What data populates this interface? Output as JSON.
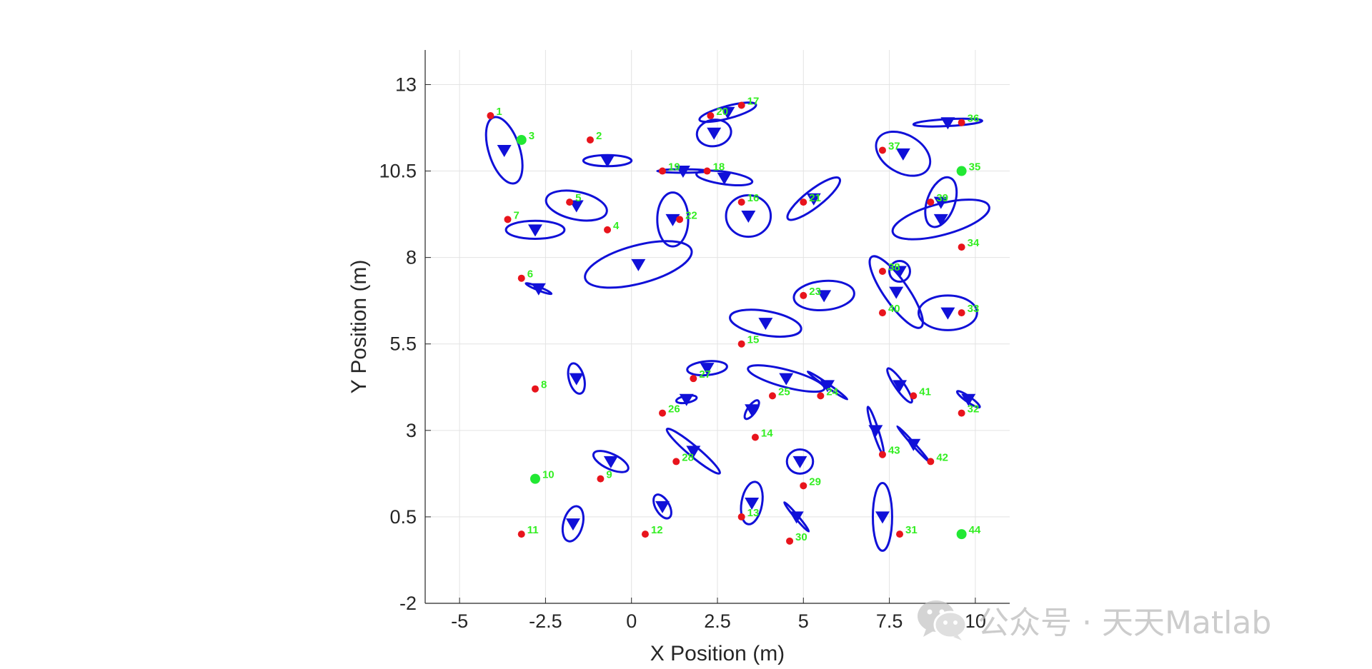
{
  "chart_data": {
    "type": "scatter",
    "xlabel": "X Position (m)",
    "ylabel": "Y Position (m)",
    "xlim": [
      -6,
      11
    ],
    "ylim": [
      -2,
      14
    ],
    "xticks": [
      -5,
      -2.5,
      0,
      2.5,
      5,
      7.5,
      10
    ],
    "xtick_labels": [
      "-5",
      "-2.5",
      "0",
      "2.5",
      "5",
      "7.5",
      "10"
    ],
    "yticks": [
      -2,
      0.5,
      3,
      5.5,
      8,
      10.5,
      13
    ],
    "ytick_labels": [
      "-2",
      "0.5",
      "3",
      "5.5",
      "8",
      "10.5",
      "13"
    ],
    "grid": true,
    "colors": {
      "node": "#e8141c",
      "anchor": "#22e833",
      "estimate": "#1010d8",
      "label": "#33ee22",
      "grid": "#e3e3e3",
      "axis": "#262626"
    },
    "nodes": [
      {
        "id": "1",
        "x": -4.1,
        "y": 12.1,
        "type": "node"
      },
      {
        "id": "2",
        "x": -1.2,
        "y": 11.4,
        "type": "node"
      },
      {
        "id": "3",
        "x": -3.2,
        "y": 11.4,
        "type": "anchor"
      },
      {
        "id": "4",
        "x": -0.7,
        "y": 8.8,
        "type": "node"
      },
      {
        "id": "5",
        "x": -1.8,
        "y": 9.6,
        "type": "node"
      },
      {
        "id": "6",
        "x": -3.2,
        "y": 7.4,
        "type": "node"
      },
      {
        "id": "7",
        "x": -3.6,
        "y": 9.1,
        "type": "node"
      },
      {
        "id": "8",
        "x": -2.8,
        "y": 4.2,
        "type": "node"
      },
      {
        "id": "9",
        "x": -0.9,
        "y": 1.6,
        "type": "node"
      },
      {
        "id": "10",
        "x": -2.8,
        "y": 1.6,
        "type": "anchor"
      },
      {
        "id": "11",
        "x": -3.2,
        "y": 0.0,
        "type": "node"
      },
      {
        "id": "12",
        "x": 0.4,
        "y": 0.0,
        "type": "node"
      },
      {
        "id": "13",
        "x": 3.2,
        "y": 0.5,
        "type": "node"
      },
      {
        "id": "14",
        "x": 3.6,
        "y": 2.8,
        "type": "node"
      },
      {
        "id": "15",
        "x": 3.2,
        "y": 5.5,
        "type": "node"
      },
      {
        "id": "16",
        "x": 3.2,
        "y": 9.6,
        "type": "node"
      },
      {
        "id": "17",
        "x": 3.2,
        "y": 12.4,
        "type": "node"
      },
      {
        "id": "18",
        "x": 2.2,
        "y": 10.5,
        "type": "node"
      },
      {
        "id": "19",
        "x": 0.9,
        "y": 10.5,
        "type": "node"
      },
      {
        "id": "20",
        "x": 2.3,
        "y": 12.1,
        "type": "node"
      },
      {
        "id": "21",
        "x": 5.0,
        "y": 9.6,
        "type": "node"
      },
      {
        "id": "22",
        "x": 1.4,
        "y": 9.1,
        "type": "node"
      },
      {
        "id": "23",
        "x": 5.0,
        "y": 6.9,
        "type": "node"
      },
      {
        "id": "24",
        "x": 5.5,
        "y": 4.0,
        "type": "node"
      },
      {
        "id": "25",
        "x": 4.1,
        "y": 4.0,
        "type": "node"
      },
      {
        "id": "26",
        "x": 0.9,
        "y": 3.5,
        "type": "node"
      },
      {
        "id": "27",
        "x": 1.8,
        "y": 4.5,
        "type": "node"
      },
      {
        "id": "28",
        "x": 1.3,
        "y": 2.1,
        "type": "node"
      },
      {
        "id": "29",
        "x": 5.0,
        "y": 1.4,
        "type": "node"
      },
      {
        "id": "30",
        "x": 4.6,
        "y": -0.2,
        "type": "node"
      },
      {
        "id": "31",
        "x": 7.8,
        "y": 0.0,
        "type": "node"
      },
      {
        "id": "32",
        "x": 9.6,
        "y": 3.5,
        "type": "node"
      },
      {
        "id": "33",
        "x": 9.6,
        "y": 6.4,
        "type": "node"
      },
      {
        "id": "34",
        "x": 9.6,
        "y": 8.3,
        "type": "node"
      },
      {
        "id": "35",
        "x": 9.6,
        "y": 10.5,
        "type": "anchor"
      },
      {
        "id": "36",
        "x": 9.6,
        "y": 11.9,
        "type": "node"
      },
      {
        "id": "37",
        "x": 7.3,
        "y": 11.1,
        "type": "node"
      },
      {
        "id": "38",
        "x": 7.3,
        "y": 7.6,
        "type": "node"
      },
      {
        "id": "39",
        "x": 8.7,
        "y": 9.6,
        "type": "node"
      },
      {
        "id": "40",
        "x": 7.3,
        "y": 6.4,
        "type": "node"
      },
      {
        "id": "41",
        "x": 8.2,
        "y": 4.0,
        "type": "node"
      },
      {
        "id": "42",
        "x": 8.7,
        "y": 2.1,
        "type": "node"
      },
      {
        "id": "43",
        "x": 7.3,
        "y": 2.3,
        "type": "node"
      },
      {
        "id": "44",
        "x": 9.6,
        "y": 0.0,
        "type": "anchor"
      }
    ],
    "estimates": [
      {
        "x": -3.7,
        "y": 11.1,
        "rx": 0.45,
        "ry": 1.0,
        "angle": 18
      },
      {
        "x": -0.7,
        "y": 10.8,
        "rx": 0.7,
        "ry": 0.16,
        "angle": 0
      },
      {
        "x": -1.6,
        "y": 9.5,
        "rx": 0.9,
        "ry": 0.4,
        "angle": -12
      },
      {
        "x": -2.8,
        "y": 8.8,
        "rx": 0.85,
        "ry": 0.26,
        "angle": 0
      },
      {
        "x": -2.7,
        "y": 7.1,
        "rx": 0.4,
        "ry": 0.05,
        "angle": -22
      },
      {
        "x": 0.2,
        "y": 7.8,
        "rx": 1.6,
        "ry": 0.55,
        "angle": 15
      },
      {
        "x": 1.2,
        "y": 9.1,
        "rx": 0.45,
        "ry": 0.78,
        "angle": 0
      },
      {
        "x": 1.5,
        "y": 10.5,
        "rx": 0.75,
        "ry": 0.05,
        "angle": 0
      },
      {
        "x": 2.7,
        "y": 10.3,
        "rx": 0.82,
        "ry": 0.18,
        "angle": -8
      },
      {
        "x": 2.4,
        "y": 11.6,
        "rx": 0.5,
        "ry": 0.38,
        "angle": 10
      },
      {
        "x": 2.8,
        "y": 12.2,
        "rx": 0.85,
        "ry": 0.18,
        "angle": 15
      },
      {
        "x": 3.4,
        "y": 9.2,
        "rx": 0.65,
        "ry": 0.6,
        "angle": 0
      },
      {
        "x": 5.3,
        "y": 9.7,
        "rx": 0.95,
        "ry": 0.25,
        "angle": 38
      },
      {
        "x": 5.6,
        "y": 6.9,
        "rx": 0.88,
        "ry": 0.42,
        "angle": 5
      },
      {
        "x": 3.9,
        "y": 6.1,
        "rx": 1.05,
        "ry": 0.35,
        "angle": -10
      },
      {
        "x": 7.7,
        "y": 7.0,
        "rx": 1.25,
        "ry": 0.35,
        "angle": -55
      },
      {
        "x": 7.8,
        "y": 7.6,
        "rx": 0.3,
        "ry": 0.3,
        "angle": 0
      },
      {
        "x": 9.2,
        "y": 6.4,
        "rx": 0.85,
        "ry": 0.5,
        "angle": 0
      },
      {
        "x": 9.0,
        "y": 9.1,
        "rx": 1.45,
        "ry": 0.45,
        "angle": 15
      },
      {
        "x": 9.0,
        "y": 9.6,
        "rx": 0.4,
        "ry": 0.75,
        "angle": -20
      },
      {
        "x": 7.9,
        "y": 11.0,
        "rx": 0.85,
        "ry": 0.55,
        "angle": -30
      },
      {
        "x": 9.2,
        "y": 11.9,
        "rx": 1.0,
        "ry": 0.1,
        "angle": 3
      },
      {
        "x": -1.6,
        "y": 4.5,
        "rx": 0.22,
        "ry": 0.45,
        "angle": 15
      },
      {
        "x": 2.2,
        "y": 4.8,
        "rx": 0.58,
        "ry": 0.2,
        "angle": 5
      },
      {
        "x": 1.6,
        "y": 3.9,
        "rx": 0.3,
        "ry": 0.1,
        "angle": 10
      },
      {
        "x": 4.5,
        "y": 4.5,
        "rx": 1.15,
        "ry": 0.25,
        "angle": -15
      },
      {
        "x": 5.7,
        "y": 4.3,
        "rx": 0.7,
        "ry": 0.05,
        "angle": -35
      },
      {
        "x": 3.5,
        "y": 3.6,
        "rx": 0.32,
        "ry": 0.12,
        "angle": 55
      },
      {
        "x": 7.8,
        "y": 4.3,
        "rx": 0.6,
        "ry": 0.13,
        "angle": -55
      },
      {
        "x": 9.8,
        "y": 3.9,
        "rx": 0.4,
        "ry": 0.08,
        "angle": -35
      },
      {
        "x": 7.1,
        "y": 3.0,
        "rx": 0.72,
        "ry": 0.08,
        "angle": -72
      },
      {
        "x": 8.2,
        "y": 2.6,
        "rx": 0.7,
        "ry": 0.04,
        "angle": -48
      },
      {
        "x": 1.8,
        "y": 2.4,
        "rx": 1.0,
        "ry": 0.15,
        "angle": -40
      },
      {
        "x": -0.6,
        "y": 2.1,
        "rx": 0.55,
        "ry": 0.22,
        "angle": -25
      },
      {
        "x": 4.9,
        "y": 2.1,
        "rx": 0.38,
        "ry": 0.35,
        "angle": 0
      },
      {
        "x": 3.5,
        "y": 0.9,
        "rx": 0.3,
        "ry": 0.62,
        "angle": -10
      },
      {
        "x": 4.8,
        "y": 0.5,
        "rx": 0.55,
        "ry": 0.05,
        "angle": -50
      },
      {
        "x": 0.9,
        "y": 0.8,
        "rx": 0.2,
        "ry": 0.38,
        "angle": 30
      },
      {
        "x": -1.7,
        "y": 0.3,
        "rx": 0.28,
        "ry": 0.52,
        "angle": -15
      },
      {
        "x": 7.3,
        "y": 0.5,
        "rx": 0.28,
        "ry": 0.98,
        "angle": 0
      }
    ]
  },
  "watermark": {
    "text": "公众号 · 天天Matlab",
    "icon": "wechat-icon"
  }
}
